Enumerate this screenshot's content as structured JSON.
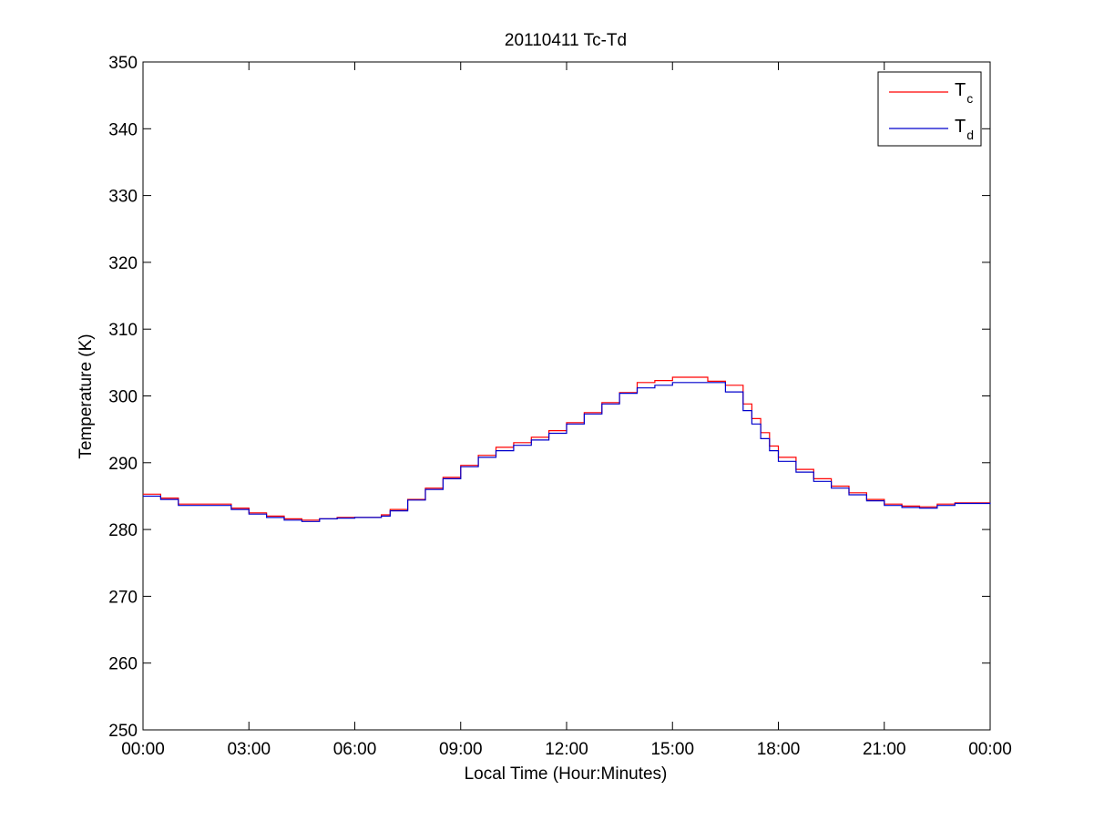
{
  "chart_data": {
    "type": "line",
    "title": "20110411 Tc-Td",
    "xlabel": "Local Time (Hour:Minutes)",
    "ylabel": "Temperature (K)",
    "xlim": [
      "00:00",
      "24:00"
    ],
    "ylim": [
      250,
      350
    ],
    "x_ticks": [
      "00:00",
      "03:00",
      "06:00",
      "09:00",
      "12:00",
      "15:00",
      "18:00",
      "21:00",
      "00:00"
    ],
    "y_ticks": [
      250,
      260,
      270,
      280,
      290,
      300,
      310,
      320,
      330,
      340,
      350
    ],
    "grid": false,
    "legend_position": "top-right",
    "series": [
      {
        "name": "Tc",
        "legend_main": "T",
        "legend_sub": "c",
        "color": "#ff0000",
        "x": [
          "00:00",
          "00:30",
          "01:00",
          "02:00",
          "02:30",
          "03:00",
          "03:30",
          "04:00",
          "04:30",
          "05:00",
          "05:30",
          "06:00",
          "06:30",
          "06:45",
          "07:00",
          "07:30",
          "08:00",
          "08:30",
          "09:00",
          "09:30",
          "10:00",
          "10:30",
          "11:00",
          "11:30",
          "12:00",
          "12:30",
          "13:00",
          "13:30",
          "14:00",
          "14:30",
          "15:00",
          "15:30",
          "16:00",
          "16:30",
          "17:00",
          "17:15",
          "17:30",
          "17:45",
          "18:00",
          "18:30",
          "19:00",
          "19:30",
          "20:00",
          "20:30",
          "21:00",
          "21:30",
          "22:00",
          "22:30",
          "23:00",
          "24:00"
        ],
        "y": [
          285.3,
          284.7,
          283.8,
          283.8,
          283.2,
          282.5,
          282.0,
          281.6,
          281.4,
          281.6,
          281.8,
          281.8,
          281.8,
          282.2,
          283.0,
          284.5,
          286.2,
          287.8,
          289.6,
          291.1,
          292.3,
          293.0,
          293.8,
          294.8,
          296.0,
          297.5,
          299.0,
          300.5,
          302.0,
          302.3,
          302.8,
          302.8,
          302.2,
          301.6,
          298.8,
          296.6,
          294.5,
          292.5,
          290.8,
          289.0,
          287.6,
          286.5,
          285.5,
          284.5,
          283.8,
          283.5,
          283.4,
          283.8,
          284.0,
          284.0
        ]
      },
      {
        "name": "Td",
        "legend_main": "T",
        "legend_sub": "d",
        "color": "#0000cc",
        "x": [
          "00:00",
          "00:30",
          "01:00",
          "02:00",
          "02:30",
          "03:00",
          "03:30",
          "04:00",
          "04:30",
          "05:00",
          "05:30",
          "06:00",
          "06:30",
          "06:45",
          "07:00",
          "07:30",
          "08:00",
          "08:30",
          "09:00",
          "09:30",
          "10:00",
          "10:30",
          "11:00",
          "11:30",
          "12:00",
          "12:30",
          "13:00",
          "13:30",
          "14:00",
          "14:30",
          "15:00",
          "15:30",
          "16:00",
          "16:30",
          "17:00",
          "17:15",
          "17:30",
          "17:45",
          "18:00",
          "18:30",
          "19:00",
          "19:30",
          "20:00",
          "20:30",
          "21:00",
          "21:30",
          "22:00",
          "22:30",
          "23:00",
          "24:00"
        ],
        "y": [
          285.0,
          284.5,
          283.6,
          283.6,
          283.0,
          282.3,
          281.8,
          281.4,
          281.2,
          281.6,
          281.7,
          281.8,
          281.8,
          282.0,
          282.8,
          284.4,
          286.0,
          287.6,
          289.4,
          290.8,
          291.8,
          292.6,
          293.4,
          294.4,
          295.8,
          297.3,
          298.8,
          300.4,
          301.2,
          301.6,
          302.0,
          302.0,
          302.0,
          300.6,
          297.8,
          295.8,
          293.6,
          291.8,
          290.2,
          288.6,
          287.2,
          286.2,
          285.2,
          284.3,
          283.6,
          283.3,
          283.2,
          283.6,
          283.9,
          284.0
        ]
      }
    ]
  }
}
